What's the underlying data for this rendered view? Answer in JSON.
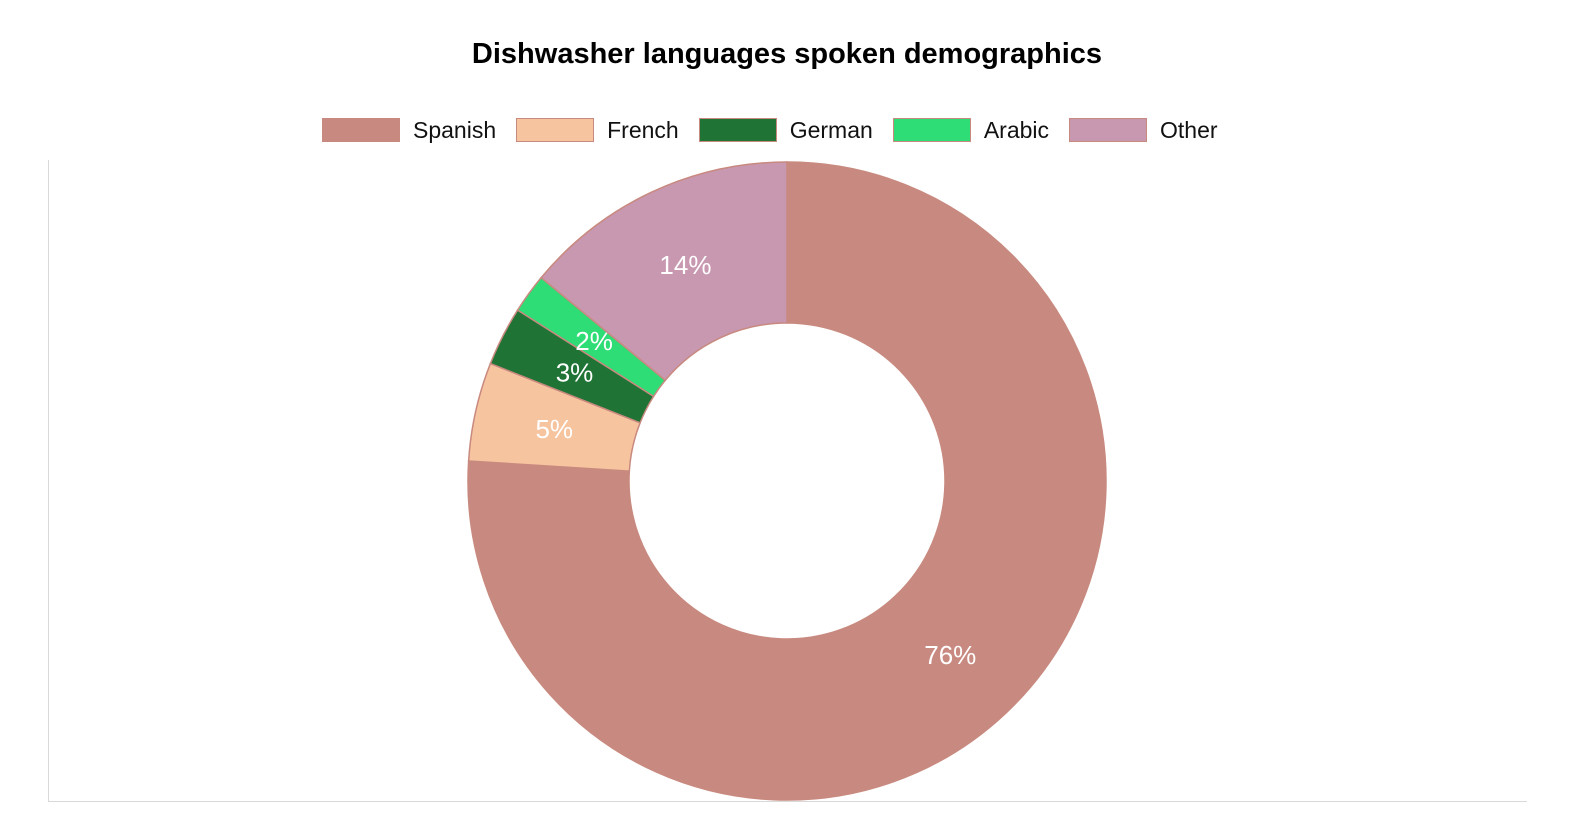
{
  "chart_data": {
    "type": "pie",
    "variant": "doughnut",
    "title": "Dishwasher languages spoken demographics",
    "legend_position": "top",
    "categories": [
      "Spanish",
      "French",
      "German",
      "Arabic",
      "Other"
    ],
    "values": [
      76,
      5,
      3,
      2,
      14
    ],
    "data_labels": [
      "76%",
      "5%",
      "3%",
      "2%",
      "14%"
    ],
    "colors": [
      "#c88a80",
      "#f7c4a0",
      "#1e7335",
      "#2edd75",
      "#c897b0"
    ],
    "border_color": "#c8897f"
  }
}
